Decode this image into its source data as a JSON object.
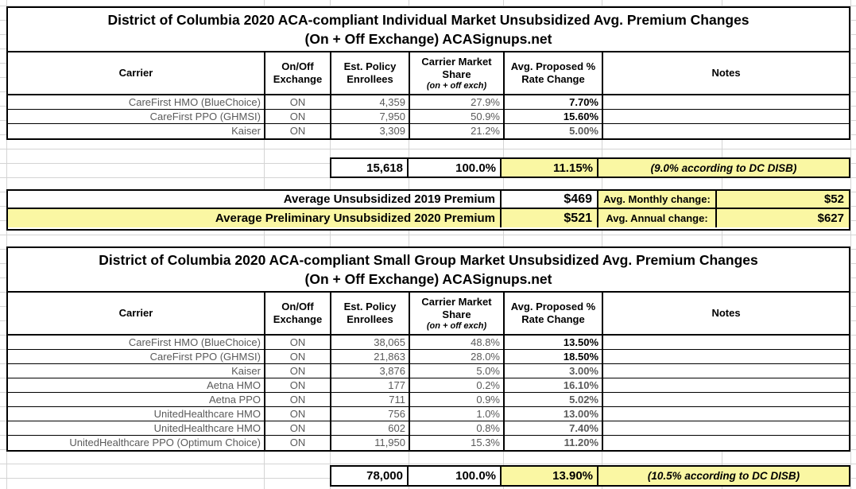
{
  "colors": {
    "highlight": "#faf7a3",
    "gridline": "#d4d4d4",
    "muted_text": "#5a5a5a"
  },
  "individual": {
    "title_line1": "District of Columbia 2020 ACA-compliant Individual Market Unsubsidized Avg. Premium Changes",
    "title_line2": "(On + Off Exchange) ACASignups.net",
    "headers": {
      "carrier": "Carrier",
      "exchange": "On/Off Exchange",
      "enrollees": "Est. Policy Enrollees",
      "share": "Carrier Market Share",
      "share_note": "(on + off exch)",
      "rate": "Avg. Proposed % Rate Change",
      "notes": "Notes"
    },
    "rows": [
      {
        "carrier": "CareFirst HMO (BlueChoice)",
        "exchange": "ON",
        "enrollees": "4,359",
        "share": "27.9%",
        "rate": "7.70%",
        "rate_strong": true,
        "notes": ""
      },
      {
        "carrier": "CareFirst PPO (GHMSI)",
        "exchange": "ON",
        "enrollees": "7,950",
        "share": "50.9%",
        "rate": "15.60%",
        "rate_strong": true,
        "notes": ""
      },
      {
        "carrier": "Kaiser",
        "exchange": "ON",
        "enrollees": "3,309",
        "share": "21.2%",
        "rate": "5.00%",
        "rate_strong": false,
        "notes": ""
      }
    ],
    "total": {
      "enrollees": "15,618",
      "share": "100.0%",
      "rate": "11.15%",
      "note": "(9.0% according to DC DISB)"
    }
  },
  "averages": {
    "rows": [
      {
        "label": "Average Unsubsidized 2019 Premium",
        "value": "$469",
        "change_label": "Avg. Monthly change:",
        "change_value": "$52"
      },
      {
        "label": "Average Preliminary Unsubsidized 2020 Premium",
        "value": "$521",
        "change_label": "Avg. Annual change:",
        "change_value": "$627"
      }
    ]
  },
  "small_group": {
    "title_line1": "District of Columbia 2020 ACA-compliant Small Group Market Unsubsidized Avg. Premium Changes",
    "title_line2": "(On + Off Exchange) ACASignups.net",
    "headers": {
      "carrier": "Carrier",
      "exchange": "On/Off Exchange",
      "enrollees": "Est. Policy Enrollees",
      "share": "Carrier Market Share",
      "share_note": "(on + off exch)",
      "rate": "Avg. Proposed % Rate Change",
      "notes": "Notes"
    },
    "rows": [
      {
        "carrier": "CareFirst HMO (BlueChoice)",
        "exchange": "ON",
        "enrollees": "38,065",
        "share": "48.8%",
        "rate": "13.50%",
        "rate_strong": true,
        "notes": ""
      },
      {
        "carrier": "CareFirst PPO (GHMSI)",
        "exchange": "ON",
        "enrollees": "21,863",
        "share": "28.0%",
        "rate": "18.50%",
        "rate_strong": true,
        "notes": ""
      },
      {
        "carrier": "Kaiser",
        "exchange": "ON",
        "enrollees": "3,876",
        "share": "5.0%",
        "rate": "3.00%",
        "rate_strong": false,
        "notes": ""
      },
      {
        "carrier": "Aetna HMO",
        "exchange": "ON",
        "enrollees": "177",
        "share": "0.2%",
        "rate": "16.10%",
        "rate_strong": false,
        "notes": ""
      },
      {
        "carrier": "Aetna PPO",
        "exchange": "ON",
        "enrollees": "711",
        "share": "0.9%",
        "rate": "5.02%",
        "rate_strong": false,
        "notes": ""
      },
      {
        "carrier": "UnitedHealthcare HMO",
        "exchange": "ON",
        "enrollees": "756",
        "share": "1.0%",
        "rate": "13.00%",
        "rate_strong": false,
        "notes": ""
      },
      {
        "carrier": "UnitedHealthcare HMO",
        "exchange": "ON",
        "enrollees": "602",
        "share": "0.8%",
        "rate": "7.40%",
        "rate_strong": false,
        "notes": ""
      },
      {
        "carrier": "UnitedHealthcare PPO (Optimum Choice)",
        "exchange": "ON",
        "enrollees": "11,950",
        "share": "15.3%",
        "rate": "11.20%",
        "rate_strong": false,
        "notes": ""
      }
    ],
    "total": {
      "enrollees": "78,000",
      "share": "100.0%",
      "rate": "13.90%",
      "note": "(10.5% according to DC DISB)"
    }
  }
}
